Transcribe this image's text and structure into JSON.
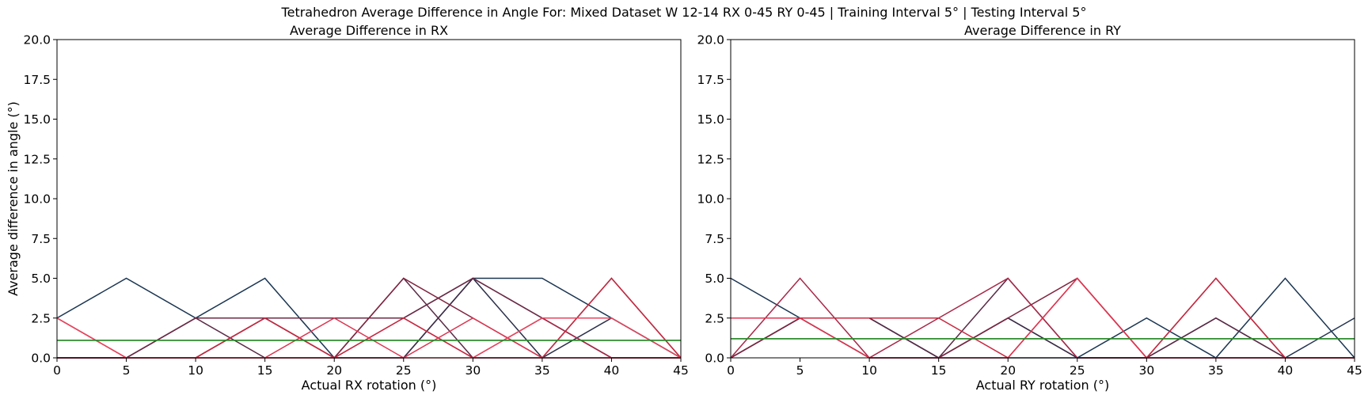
{
  "suptitle": "Tetrahedron Average Difference in Angle For: Mixed Dataset W 12-14 RX 0-45 RY 0-45 | Training Interval 5° | Testing Interval 5°",
  "chart_data": [
    {
      "type": "line",
      "title": "Average Difference in RX",
      "xlabel": "Actual RX rotation (°)",
      "ylabel": "Average difference in angle (°)",
      "xlim": [
        0,
        45
      ],
      "ylim": [
        0,
        20
      ],
      "xticks": [
        "0",
        "5",
        "10",
        "15",
        "20",
        "25",
        "30",
        "35",
        "40",
        "45"
      ],
      "yticks": [
        "0.0",
        "2.5",
        "5.0",
        "7.5",
        "10.0",
        "12.5",
        "15.0",
        "17.5",
        "20.0"
      ],
      "x": [
        0,
        5,
        10,
        15,
        20,
        25,
        30,
        35,
        40,
        45
      ],
      "series": [
        {
          "color": "#1a3552",
          "values": [
            2.5,
            5.0,
            2.5,
            5.0,
            0.0,
            0.0,
            5.0,
            5.0,
            2.5,
            0.0
          ]
        },
        {
          "color": "#2a2f4a",
          "values": [
            0.0,
            0.0,
            2.5,
            2.5,
            2.5,
            2.5,
            5.0,
            0.0,
            2.5,
            0.0
          ]
        },
        {
          "color": "#3d2a45",
          "values": [
            0.0,
            0.0,
            0.0,
            2.5,
            0.0,
            0.0,
            5.0,
            2.5,
            0.0,
            0.0
          ]
        },
        {
          "color": "#5a2a45",
          "values": [
            0.0,
            0.0,
            2.5,
            0.0,
            0.0,
            5.0,
            0.0,
            0.0,
            5.0,
            0.0
          ]
        },
        {
          "color": "#6e2a45",
          "values": [
            0.0,
            0.0,
            2.5,
            2.5,
            2.5,
            2.5,
            5.0,
            2.5,
            0.0,
            0.0
          ]
        },
        {
          "color": "#7f2440",
          "values": [
            0.0,
            0.0,
            0.0,
            2.5,
            0.0,
            5.0,
            2.5,
            0.0,
            0.0,
            0.0
          ]
        },
        {
          "color": "#a82848",
          "values": [
            2.5,
            0.0,
            0.0,
            0.0,
            0.0,
            2.5,
            0.0,
            2.5,
            0.0,
            0.0
          ]
        },
        {
          "color": "#c9283f",
          "values": [
            0.0,
            0.0,
            0.0,
            2.5,
            0.0,
            2.5,
            0.0,
            0.0,
            5.0,
            0.0
          ]
        },
        {
          "color": "#dc3550",
          "values": [
            2.5,
            0.0,
            0.0,
            0.0,
            2.5,
            0.0,
            2.5,
            0.0,
            0.0,
            0.0
          ]
        },
        {
          "color": "#e8455c",
          "values": [
            2.5,
            0.0,
            0.0,
            0.0,
            0.0,
            0.0,
            0.0,
            2.5,
            2.5,
            0.0
          ]
        },
        {
          "color": "#2e8b2e",
          "values": [
            1.1,
            1.1,
            1.1,
            1.1,
            1.1,
            1.1,
            1.1,
            1.1,
            1.1,
            1.1
          ]
        }
      ]
    },
    {
      "type": "line",
      "title": "Average Difference in RY",
      "xlabel": "Actual RY rotation (°)",
      "ylabel": "",
      "xlim": [
        0,
        45
      ],
      "ylim": [
        0,
        20
      ],
      "xticks": [
        "0",
        "5",
        "10",
        "15",
        "20",
        "25",
        "30",
        "35",
        "40",
        "45"
      ],
      "yticks": [
        "0.0",
        "2.5",
        "5.0",
        "7.5",
        "10.0",
        "12.5",
        "15.0",
        "17.5",
        "20.0"
      ],
      "x": [
        0,
        5,
        10,
        15,
        20,
        25,
        30,
        35,
        40,
        45
      ],
      "series": [
        {
          "color": "#1a3552",
          "values": [
            5.0,
            2.5,
            2.5,
            0.0,
            2.5,
            0.0,
            2.5,
            0.0,
            5.0,
            0.0
          ]
        },
        {
          "color": "#22324e",
          "values": [
            0.0,
            2.5,
            2.5,
            0.0,
            0.0,
            0.0,
            0.0,
            0.0,
            0.0,
            2.5
          ]
        },
        {
          "color": "#3d2a45",
          "values": [
            0.0,
            2.5,
            0.0,
            0.0,
            2.5,
            0.0,
            0.0,
            2.5,
            0.0,
            0.0
          ]
        },
        {
          "color": "#5a2a45",
          "values": [
            0.0,
            2.5,
            2.5,
            0.0,
            5.0,
            0.0,
            0.0,
            2.5,
            0.0,
            0.0
          ]
        },
        {
          "color": "#7f2440",
          "values": [
            0.0,
            2.5,
            0.0,
            0.0,
            2.5,
            5.0,
            0.0,
            5.0,
            0.0,
            0.0
          ]
        },
        {
          "color": "#a82848",
          "values": [
            0.0,
            5.0,
            0.0,
            2.5,
            5.0,
            0.0,
            0.0,
            0.0,
            0.0,
            0.0
          ]
        },
        {
          "color": "#c9283f",
          "values": [
            2.5,
            2.5,
            2.5,
            2.5,
            0.0,
            5.0,
            0.0,
            5.0,
            0.0,
            0.0
          ]
        },
        {
          "color": "#e0344f",
          "values": [
            2.5,
            2.5,
            0.0,
            0.0,
            0.0,
            5.0,
            0.0,
            0.0,
            0.0,
            0.0
          ]
        },
        {
          "color": "#2e8b2e",
          "values": [
            1.2,
            1.2,
            1.2,
            1.2,
            1.2,
            1.2,
            1.2,
            1.2,
            1.2,
            1.2
          ]
        }
      ]
    }
  ]
}
